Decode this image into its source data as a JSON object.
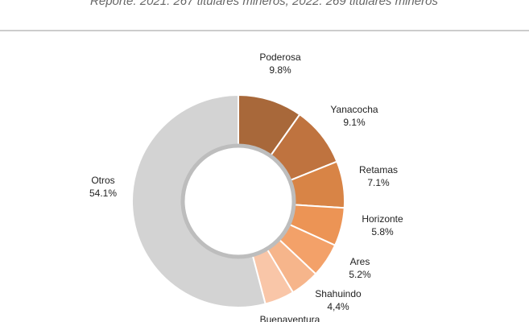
{
  "chart_data": {
    "type": "pie",
    "subtitle": "Reporte: 2021: 267 titulares mineros, 2022: 269 titulares mineros",
    "categories": [
      "Poderosa",
      "Yanacocha",
      "Retamas",
      "Horizonte",
      "Ares",
      "Shahuindo",
      "Buenaventura",
      "Otros"
    ],
    "values": [
      9.8,
      9.1,
      7.1,
      5.8,
      5.2,
      4.4,
      4.5,
      54.1
    ],
    "value_labels": [
      "9.8%",
      "9.1%",
      "7.1%",
      "5.8%",
      "5.2%",
      "4,4%",
      null,
      "54.1%"
    ],
    "colors": [
      "#a8683a",
      "#bf733f",
      "#d88446",
      "#ec9455",
      "#f3a169",
      "#f6b58b",
      "#f9c6a8",
      "#d3d3d3"
    ],
    "donut": true
  }
}
